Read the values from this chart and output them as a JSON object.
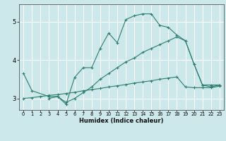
{
  "xlabel": "Humidex (Indice chaleur)",
  "bg_color": "#cce8ea",
  "grid_color": "#ffffff",
  "line_color": "#2e7d6e",
  "xlim": [
    -0.5,
    23.5
  ],
  "ylim": [
    2.7,
    5.45
  ],
  "yticks": [
    3,
    4,
    5
  ],
  "xticks": [
    0,
    1,
    2,
    3,
    4,
    5,
    6,
    7,
    8,
    9,
    10,
    11,
    12,
    13,
    14,
    15,
    16,
    17,
    18,
    19,
    20,
    21,
    22,
    23
  ],
  "line1_x": [
    0,
    1,
    3,
    4,
    5,
    6,
    7,
    8,
    9,
    10,
    11,
    12,
    13,
    14,
    15,
    16,
    17,
    18,
    19,
    20,
    21,
    22,
    23
  ],
  "line1_y": [
    3.65,
    3.2,
    3.05,
    3.05,
    2.85,
    3.55,
    3.8,
    3.8,
    4.3,
    4.7,
    4.45,
    5.05,
    5.15,
    5.2,
    5.2,
    4.9,
    4.85,
    4.65,
    4.5,
    3.9,
    3.35,
    3.3,
    3.35
  ],
  "line2_x": [
    3,
    4,
    5,
    6,
    7,
    8,
    9,
    10,
    11,
    12,
    13,
    14,
    15,
    16,
    17,
    18,
    19,
    20,
    21,
    22,
    23
  ],
  "line2_y": [
    3.0,
    3.05,
    2.9,
    3.0,
    3.15,
    3.3,
    3.5,
    3.65,
    3.8,
    3.95,
    4.05,
    4.2,
    4.3,
    4.4,
    4.5,
    4.6,
    4.5,
    3.9,
    3.35,
    3.35,
    3.35
  ],
  "line3_x": [
    0,
    1,
    2,
    3,
    4,
    5,
    6,
    7,
    8,
    9,
    10,
    11,
    12,
    13,
    14,
    15,
    16,
    17,
    18,
    19,
    20,
    21,
    22,
    23
  ],
  "line3_y": [
    3.0,
    3.02,
    3.05,
    3.08,
    3.1,
    3.13,
    3.16,
    3.2,
    3.23,
    3.26,
    3.3,
    3.33,
    3.36,
    3.4,
    3.43,
    3.46,
    3.5,
    3.53,
    3.56,
    3.3,
    3.28,
    3.28,
    3.28,
    3.32
  ]
}
